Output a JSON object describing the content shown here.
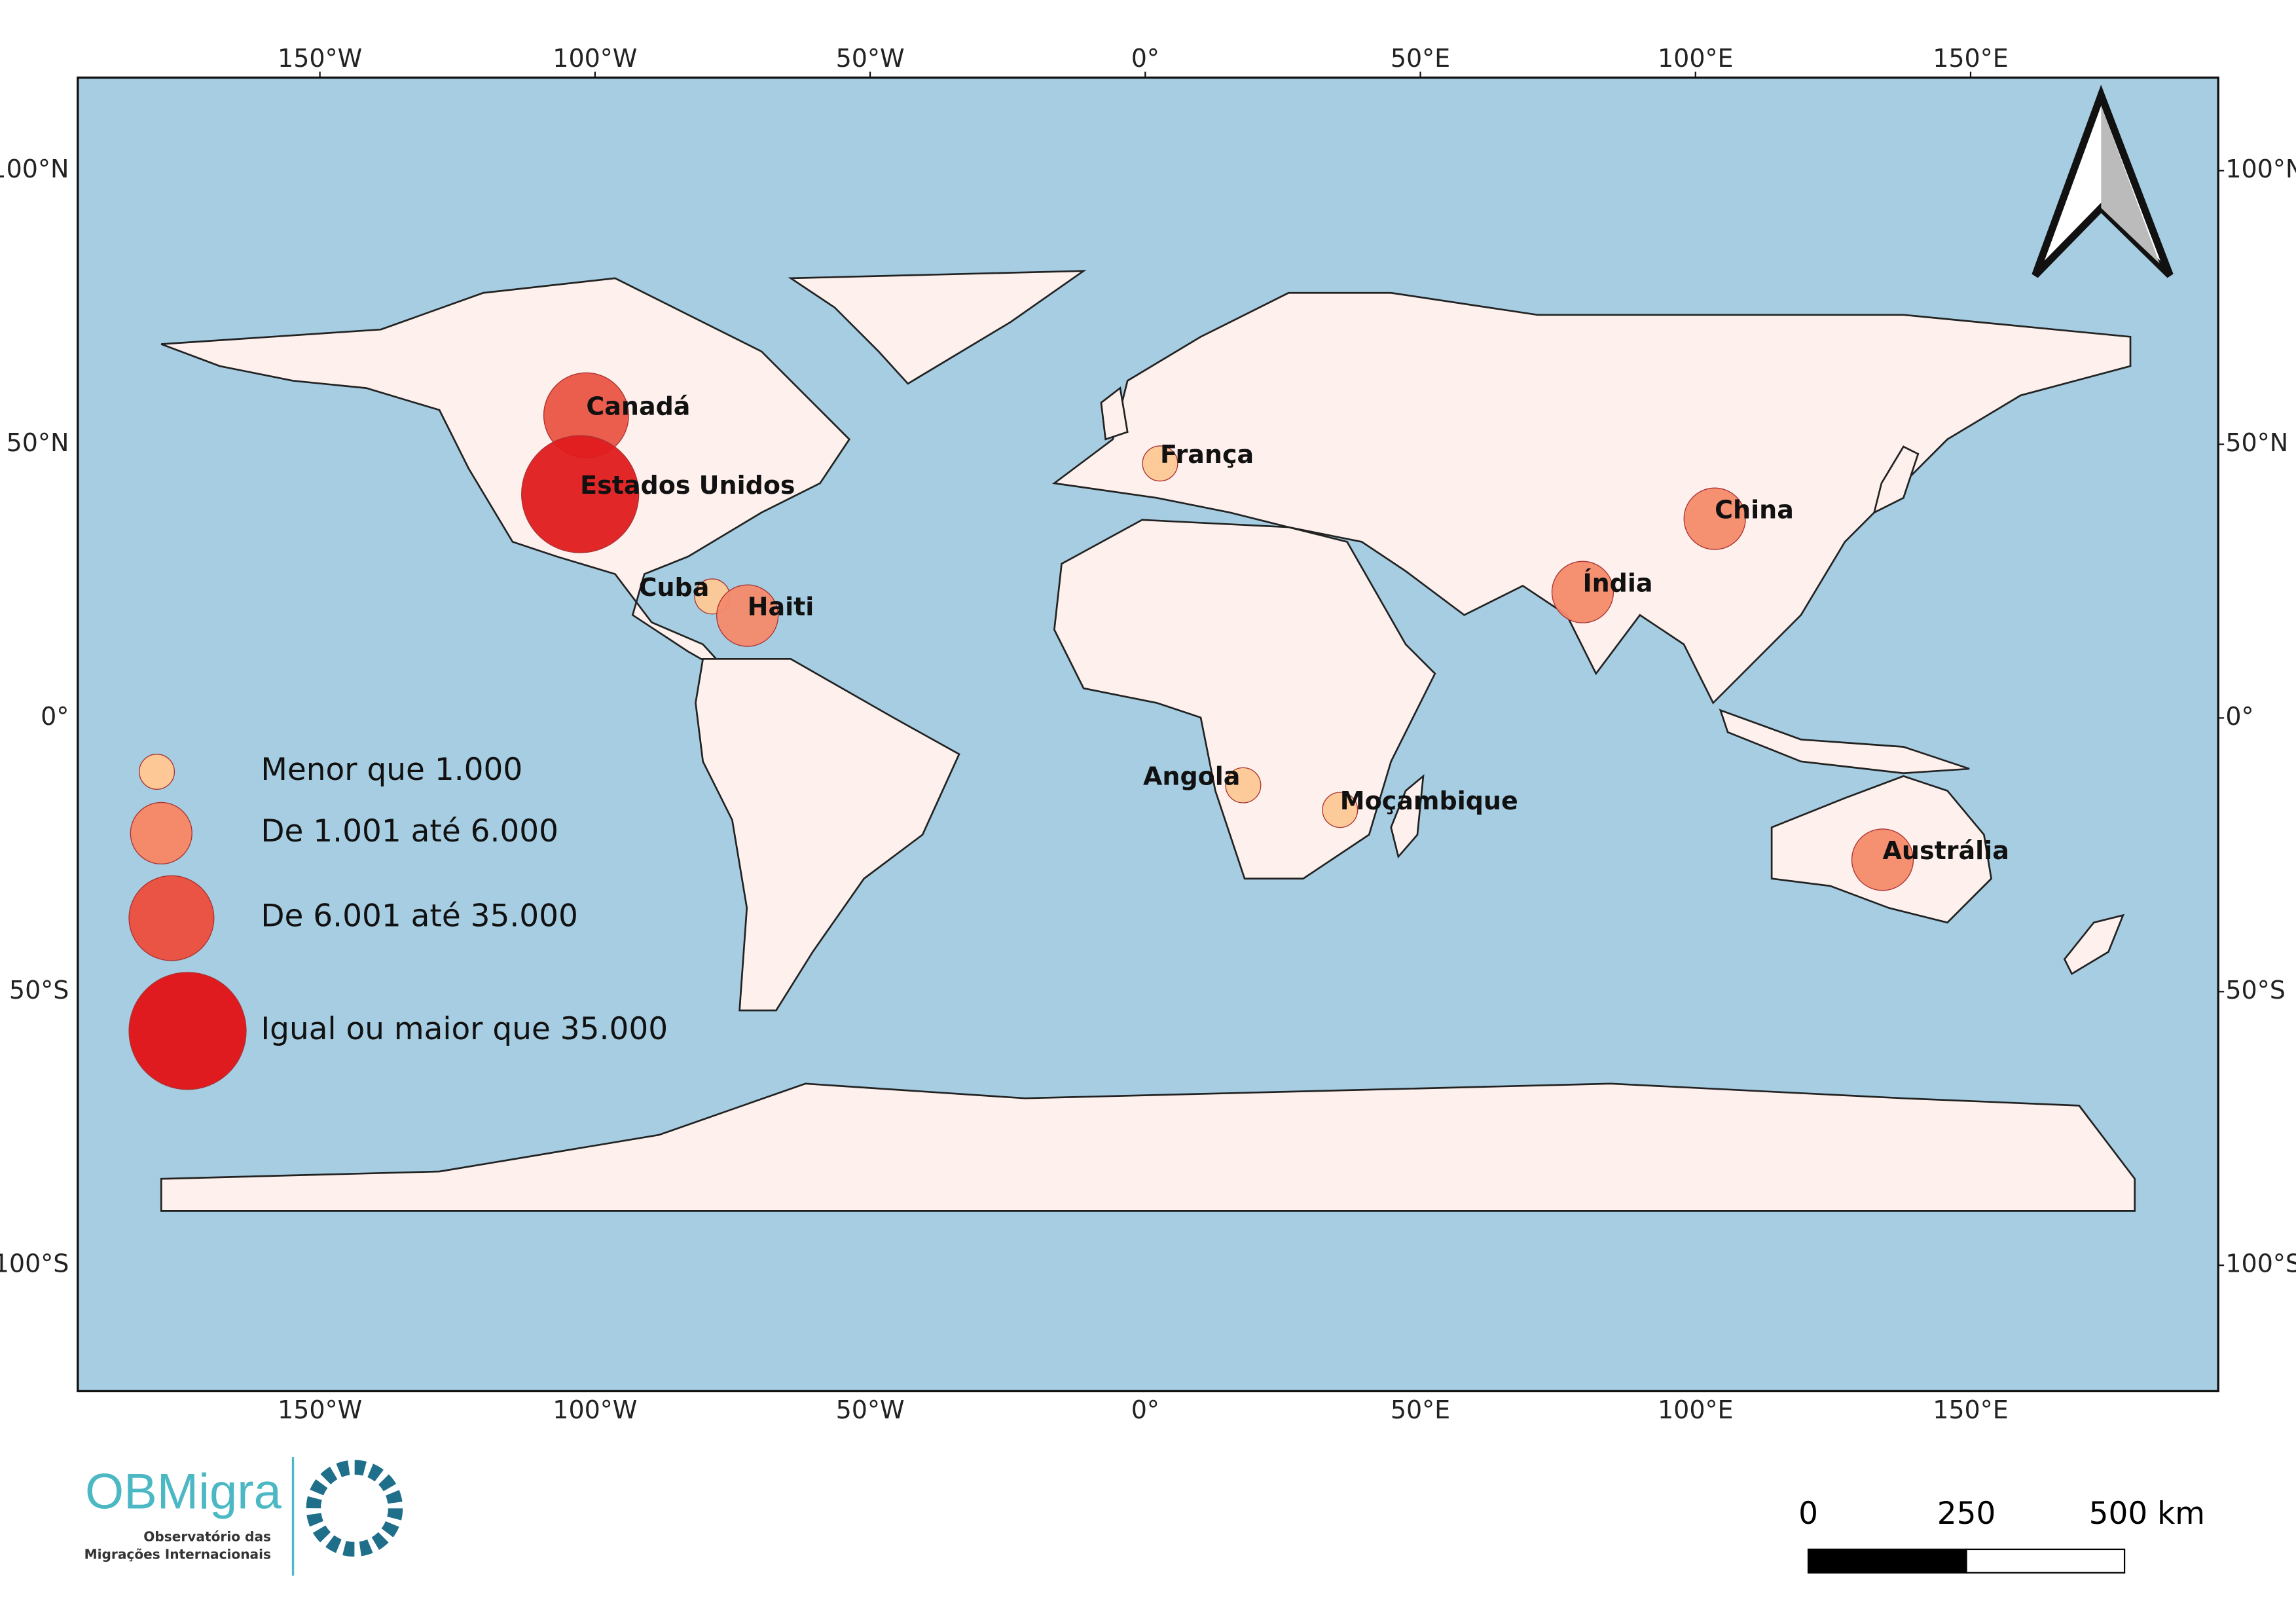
{
  "chart_data": {
    "type": "bubble-map",
    "xlim": [
      -194,
      195
    ],
    "ylim": [
      -123,
      117
    ],
    "xticks": [
      {
        "value": -150,
        "label": "150°W"
      },
      {
        "value": -100,
        "label": "100°W"
      },
      {
        "value": -50,
        "label": "50°W"
      },
      {
        "value": 0,
        "label": "0°"
      },
      {
        "value": 50,
        "label": "50°E"
      },
      {
        "value": 100,
        "label": "100°E"
      },
      {
        "value": 150,
        "label": "150°E"
      }
    ],
    "yticks": [
      {
        "value": 100,
        "label": "100°N"
      },
      {
        "value": 50,
        "label": "50°N"
      },
      {
        "value": 0,
        "label": "0°"
      },
      {
        "value": -50,
        "label": "50°S"
      },
      {
        "value": -100,
        "label": "100°S"
      }
    ],
    "legend": [
      {
        "label": "Menor que 1.000",
        "color": "#fdc895"
      },
      {
        "label": "De 1.001 até 6.000",
        "color": "#f48a6a"
      },
      {
        "label": "De 6.001 até 35.000",
        "color": "#ea5445"
      },
      {
        "label": "Igual ou maior que 35.000",
        "color": "#e01b1f"
      }
    ],
    "points": [
      {
        "name": "Canadá",
        "x": -101.6,
        "y": 55.3,
        "class": 2
      },
      {
        "name": "Estados Unidos",
        "x": -102.7,
        "y": 40.9,
        "class": 3
      },
      {
        "name": "Cuba",
        "x": -78.7,
        "y": 22.2,
        "class": 0
      },
      {
        "name": "Haiti",
        "x": -72.3,
        "y": 18.7,
        "class": 1
      },
      {
        "name": "França",
        "x": 2.7,
        "y": 46.5,
        "class": 0
      },
      {
        "name": "China",
        "x": 103.5,
        "y": 36.4,
        "class": 1
      },
      {
        "name": "Índia",
        "x": 79.5,
        "y": 23.0,
        "class": 1
      },
      {
        "name": "Angola",
        "x": 17.8,
        "y": -12.3,
        "class": 0
      },
      {
        "name": "Moçambique",
        "x": 35.4,
        "y": -16.8,
        "class": 0
      },
      {
        "name": "Austrália",
        "x": 134.0,
        "y": -25.9,
        "class": 1
      }
    ]
  },
  "scale_bar": {
    "labels": [
      "0",
      "250",
      "500 km"
    ]
  },
  "logo": {
    "name": "OBMigra",
    "line1": "Observatório das",
    "line2": "Migrações Internacionais"
  }
}
